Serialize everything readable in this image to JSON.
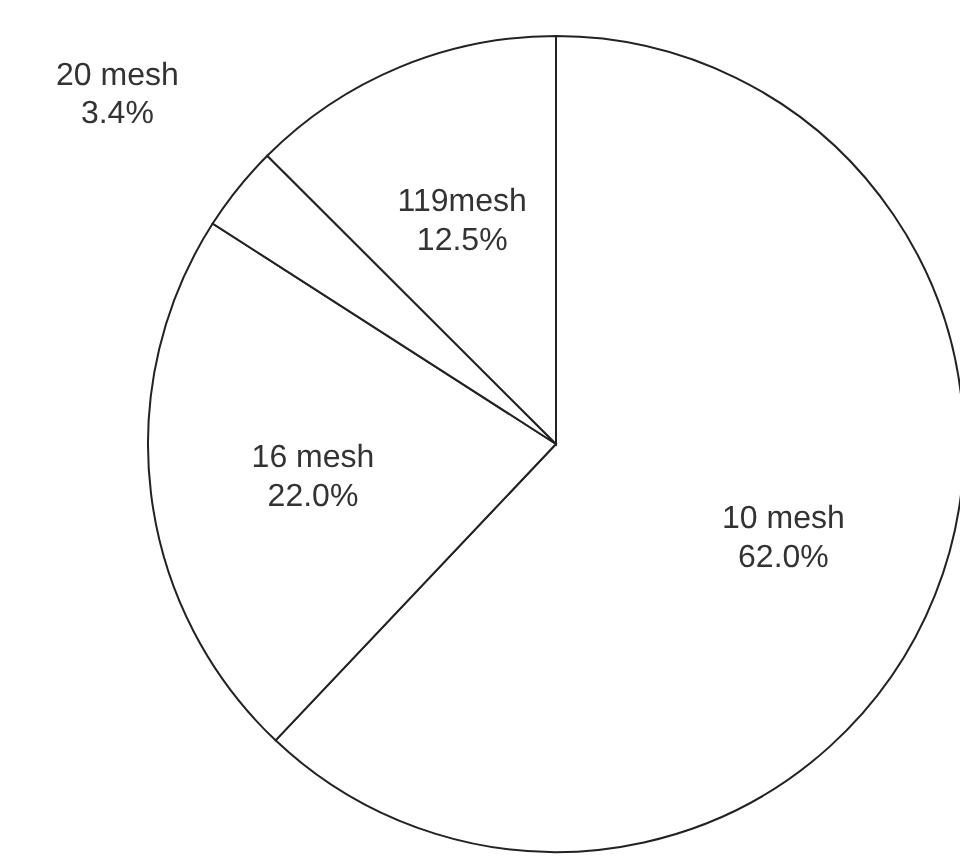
{
  "chart_data": {
    "type": "pie",
    "categories": [
      "10 mesh",
      "16 mesh",
      "20 mesh",
      "119mesh"
    ],
    "values": [
      62.0,
      22.0,
      3.4,
      12.5
    ],
    "colors": [
      "#ffffff",
      "#ffffff",
      "#ffffff",
      "#ffffff"
    ],
    "value_labels": [
      "62.0%",
      "22.0%",
      "3.4%",
      "12.5%"
    ]
  }
}
